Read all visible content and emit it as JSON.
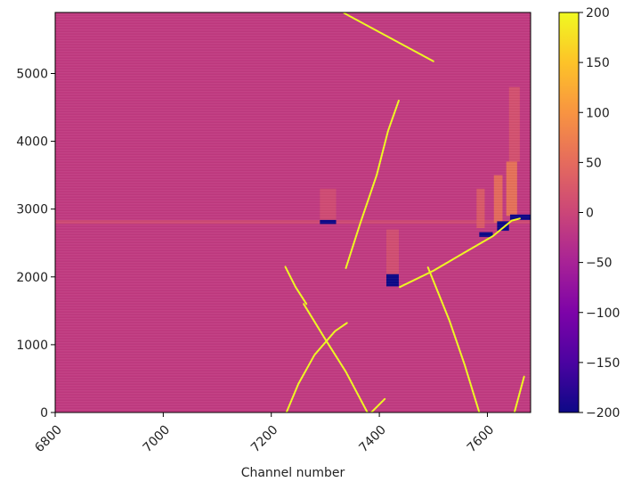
{
  "chart_data": {
    "type": "heatmap",
    "title": "",
    "xlabel": "Channel number",
    "ylabel": "",
    "xlim": [
      6800,
      7680
    ],
    "ylim": [
      0,
      5900
    ],
    "x_ticks": [
      6800,
      7000,
      7200,
      7400,
      7600
    ],
    "y_ticks": [
      0,
      1000,
      2000,
      3000,
      4000,
      5000
    ],
    "colorbar": {
      "colormap": "plasma",
      "range": [
        -200,
        200
      ],
      "ticks": [
        200,
        150,
        100,
        50,
        0,
        -50,
        -100,
        -150,
        -200
      ],
      "tick_labels": [
        "200",
        "150",
        "100",
        "50",
        "0",
        "−50",
        "−100",
        "−150",
        "−200"
      ]
    },
    "background_value": -15,
    "horizontal_band": {
      "y": 2810,
      "x_range": [
        6800,
        7680
      ],
      "value": 10
    },
    "tracks": [
      {
        "value": 200,
        "points": [
          [
            7335,
            5890
          ],
          [
            7500,
            5180
          ]
        ]
      },
      {
        "value": 200,
        "points": [
          [
            7338,
            2130
          ],
          [
            7365,
            2800
          ],
          [
            7395,
            3500
          ],
          [
            7416,
            4150
          ],
          [
            7436,
            4600
          ]
        ]
      },
      {
        "value": 200,
        "points": [
          [
            7226,
            2150
          ],
          [
            7245,
            1850
          ],
          [
            7265,
            1600
          ]
        ]
      },
      {
        "value": 200,
        "points": [
          [
            7260,
            1600
          ],
          [
            7300,
            1080
          ],
          [
            7338,
            600
          ],
          [
            7378,
            0
          ]
        ]
      },
      {
        "value": 200,
        "points": [
          [
            7228,
            0
          ],
          [
            7250,
            420
          ],
          [
            7280,
            850
          ],
          [
            7318,
            1200
          ],
          [
            7340,
            1320
          ]
        ]
      },
      {
        "value": 200,
        "points": [
          [
            7490,
            2140
          ],
          [
            7530,
            1350
          ],
          [
            7558,
            700
          ],
          [
            7585,
            0
          ]
        ]
      },
      {
        "value": 200,
        "points": [
          [
            7438,
            1850
          ],
          [
            7500,
            2090
          ],
          [
            7560,
            2370
          ],
          [
            7610,
            2600
          ],
          [
            7645,
            2830
          ],
          [
            7660,
            2860
          ]
        ]
      },
      {
        "value": 200,
        "points": [
          [
            7385,
            0
          ],
          [
            7410,
            200
          ]
        ]
      },
      {
        "value": 200,
        "points": [
          [
            7650,
            0
          ],
          [
            7668,
            530
          ]
        ]
      }
    ],
    "negative_patches": [
      {
        "x": [
          7290,
          7320
        ],
        "y": [
          2780,
          2840
        ],
        "value": -200
      },
      {
        "x": [
          7413,
          7436
        ],
        "y": [
          1860,
          2040
        ],
        "value": -200
      },
      {
        "x": [
          7585,
          7610
        ],
        "y": [
          2590,
          2660
        ],
        "value": -200
      },
      {
        "x": [
          7618,
          7640
        ],
        "y": [
          2680,
          2820
        ],
        "value": -200
      },
      {
        "x": [
          7642,
          7680
        ],
        "y": [
          2840,
          2920
        ],
        "value": -200
      }
    ],
    "positive_patches": [
      {
        "x": [
          7612,
          7628
        ],
        "y": [
          2800,
          3500
        ],
        "value": 70
      },
      {
        "x": [
          7635,
          7655
        ],
        "y": [
          2900,
          3700
        ],
        "value": 80
      },
      {
        "x": [
          7580,
          7595
        ],
        "y": [
          2720,
          3300
        ],
        "value": 40
      },
      {
        "x": [
          7640,
          7660
        ],
        "y": [
          3700,
          4800
        ],
        "value": 25
      },
      {
        "x": [
          7413,
          7436
        ],
        "y": [
          2040,
          2700
        ],
        "value": 20
      },
      {
        "x": [
          7290,
          7320
        ],
        "y": [
          2840,
          3300
        ],
        "value": 15
      }
    ]
  }
}
